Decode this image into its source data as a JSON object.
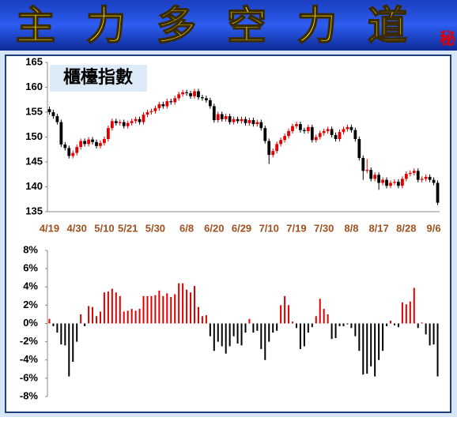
{
  "header": {
    "title": "主力多空力道",
    "badge": "秘"
  },
  "chart_data": [
    {
      "type": "candlestick",
      "title": "櫃檯指數",
      "categories": [
        "4/19",
        null,
        null,
        null,
        null,
        null,
        null,
        "4/30",
        null,
        null,
        null,
        null,
        null,
        null,
        "5/10",
        null,
        null,
        null,
        null,
        null,
        "5/21",
        null,
        null,
        null,
        null,
        null,
        null,
        "5/30",
        null,
        null,
        null,
        null,
        null,
        null,
        null,
        "6/8",
        null,
        null,
        null,
        null,
        null,
        null,
        "6/20",
        null,
        null,
        null,
        null,
        null,
        null,
        "6/29",
        null,
        null,
        null,
        null,
        null,
        null,
        "7/10",
        null,
        null,
        null,
        null,
        null,
        null,
        "7/19",
        null,
        null,
        null,
        null,
        null,
        null,
        "7/30",
        null,
        null,
        null,
        null,
        null,
        null,
        "8/8",
        null,
        null,
        null,
        null,
        null,
        null,
        "8/17",
        null,
        null,
        null,
        null,
        null,
        null,
        "8/28",
        null,
        null,
        null,
        null,
        null,
        null,
        "9/6",
        null
      ],
      "open": [
        155.6,
        155.0,
        154.2,
        153.0,
        148.5,
        147.8,
        146.2,
        146.8,
        148.0,
        149.2,
        148.6,
        149.5,
        149.0,
        148.2,
        148.8,
        149.6,
        151.8,
        153.2,
        152.8,
        153.0,
        152.2,
        152.8,
        153.2,
        153.6,
        153.0,
        154.5,
        155.0,
        155.2,
        155.8,
        156.6,
        156.2,
        157.2,
        157.0,
        157.8,
        158.6,
        159.0,
        158.8,
        158.2,
        159.2,
        158.0,
        157.8,
        157.4,
        156.2,
        153.4,
        154.6,
        153.6,
        154.2,
        153.0,
        153.6,
        153.2,
        153.6,
        152.8,
        153.4,
        152.6,
        153.0,
        151.8,
        149.2,
        146.4,
        147.2,
        148.6,
        149.4,
        150.2,
        151.2,
        152.2,
        152.6,
        151.4,
        151.2,
        152.0,
        149.4,
        150.0,
        150.8,
        151.2,
        151.6,
        150.4,
        149.6,
        151.0,
        151.6,
        152.0,
        151.4,
        149.6,
        145.8,
        143.2,
        143.4,
        141.6,
        142.4,
        140.8,
        141.4,
        140.2,
        140.8,
        141.0,
        140.2,
        141.6,
        142.6,
        142.8,
        143.2,
        141.4,
        141.6,
        142.0,
        141.4,
        140.8
      ],
      "close": [
        155.0,
        154.2,
        153.0,
        148.5,
        147.8,
        146.2,
        146.8,
        148.0,
        149.2,
        148.6,
        149.5,
        149.0,
        148.2,
        148.8,
        149.6,
        151.8,
        153.2,
        152.8,
        153.0,
        152.2,
        152.8,
        153.2,
        153.6,
        153.0,
        154.5,
        155.0,
        155.2,
        155.8,
        156.6,
        156.2,
        157.2,
        157.0,
        157.8,
        158.6,
        159.0,
        158.8,
        158.2,
        159.2,
        158.0,
        157.8,
        157.4,
        156.2,
        153.4,
        154.6,
        153.6,
        154.2,
        153.0,
        153.6,
        153.2,
        153.6,
        152.8,
        153.4,
        152.6,
        153.0,
        151.8,
        149.2,
        146.4,
        147.2,
        148.6,
        149.4,
        150.2,
        151.2,
        152.2,
        152.6,
        151.4,
        151.2,
        152.0,
        149.4,
        150.0,
        150.8,
        151.2,
        151.6,
        150.4,
        149.6,
        151.0,
        151.6,
        152.0,
        151.4,
        149.6,
        145.8,
        143.2,
        143.4,
        141.6,
        142.4,
        140.8,
        141.4,
        140.2,
        140.8,
        141.0,
        140.2,
        141.6,
        142.6,
        142.8,
        143.2,
        141.4,
        141.6,
        142.0,
        141.4,
        140.8,
        136.8
      ],
      "high": [
        156.1,
        155.5,
        154.7,
        153.5,
        149.0,
        148.3,
        147.3,
        148.5,
        149.7,
        149.7,
        150.0,
        150.0,
        149.5,
        149.3,
        150.1,
        152.3,
        153.7,
        153.7,
        153.5,
        153.5,
        153.3,
        153.7,
        154.1,
        154.1,
        155.0,
        155.5,
        155.7,
        156.3,
        157.1,
        157.1,
        157.7,
        157.7,
        158.3,
        159.1,
        159.5,
        159.5,
        159.3,
        159.7,
        159.7,
        158.5,
        158.3,
        157.9,
        156.7,
        155.1,
        155.1,
        154.7,
        154.7,
        154.1,
        154.1,
        154.1,
        154.1,
        153.9,
        153.9,
        153.5,
        153.5,
        152.3,
        149.7,
        147.7,
        149.1,
        149.9,
        150.7,
        151.7,
        152.7,
        153.1,
        153.1,
        151.9,
        152.5,
        152.5,
        150.5,
        151.3,
        151.7,
        152.1,
        152.1,
        150.9,
        151.5,
        152.1,
        152.5,
        152.5,
        151.9,
        150.1,
        146.3,
        145.6,
        143.9,
        142.9,
        142.9,
        141.9,
        141.9,
        141.3,
        141.5,
        141.5,
        142.1,
        143.1,
        143.3,
        143.7,
        143.7,
        142.1,
        142.5,
        142.5,
        141.9,
        141.3
      ],
      "low": [
        154.5,
        153.7,
        152.5,
        148.0,
        147.3,
        145.7,
        145.7,
        146.3,
        147.5,
        148.1,
        148.1,
        148.5,
        147.7,
        147.7,
        148.3,
        149.1,
        151.3,
        152.3,
        152.3,
        151.7,
        151.7,
        152.3,
        152.7,
        152.5,
        152.5,
        154.0,
        154.5,
        154.7,
        155.3,
        155.7,
        155.7,
        156.5,
        156.5,
        157.3,
        158.1,
        158.3,
        157.7,
        157.7,
        157.5,
        157.3,
        156.9,
        155.7,
        152.9,
        152.9,
        153.1,
        153.1,
        152.5,
        152.5,
        152.7,
        152.7,
        152.3,
        152.3,
        152.1,
        152.1,
        151.3,
        148.7,
        144.6,
        145.9,
        146.7,
        148.1,
        148.9,
        149.7,
        150.7,
        151.7,
        150.9,
        150.7,
        150.7,
        148.9,
        148.9,
        149.5,
        150.3,
        150.7,
        149.9,
        149.1,
        149.1,
        150.5,
        151.1,
        150.9,
        149.1,
        145.3,
        141.4,
        142.7,
        141.1,
        141.1,
        139.4,
        140.3,
        139.7,
        139.7,
        140.3,
        139.7,
        139.7,
        141.1,
        142.1,
        142.3,
        140.9,
        140.9,
        141.1,
        140.9,
        140.3,
        136.3
      ],
      "up_color": "#e00000",
      "down_color": "#000000",
      "ylim": [
        135,
        165
      ],
      "yticks": [
        135,
        140,
        145,
        150,
        155,
        160,
        165
      ]
    },
    {
      "type": "bar",
      "values": [
        0.5,
        -0.3,
        -1,
        -2.3,
        -2.4,
        -5.8,
        -4.2,
        -2,
        1,
        -0.3,
        1.9,
        1.8,
        0.8,
        1.3,
        3.4,
        3.5,
        3.8,
        3.4,
        3,
        1.3,
        1.4,
        1.6,
        1.4,
        1.6,
        3,
        3,
        3,
        3.1,
        3.6,
        3,
        3.3,
        2.9,
        3.2,
        4.4,
        4.4,
        3.7,
        3.4,
        4.1,
        1.8,
        0.8,
        0.9,
        -1.4,
        -3,
        -2,
        -2.5,
        -3.3,
        -2.5,
        -1.4,
        -2.2,
        -2.4,
        -1,
        0.5,
        -1,
        -0.8,
        -2.8,
        -4,
        -2,
        -1,
        -0.8,
        2,
        3,
        2,
        0.2,
        -0.5,
        -2.8,
        -2.5,
        -1,
        -0.4,
        0.8,
        2.7,
        1.6,
        1,
        -1.7,
        -1.6,
        -0.3,
        -0.3,
        -0.1,
        -0.5,
        -1.4,
        -3,
        -5.6,
        -5.5,
        -4.7,
        -5.8,
        -4,
        -3,
        -0.3,
        0.3,
        -0.2,
        -0.4,
        2.3,
        2.1,
        2.4,
        3.9,
        -0.5,
        0.1,
        -1.2,
        -2.4,
        -2.3,
        -5.8
      ],
      "positive_color": "#e00000",
      "negative_color": "#000000",
      "ylim": [
        -8,
        8
      ],
      "yticks": [
        {
          "value": -8,
          "label": "-8%"
        },
        {
          "value": -6,
          "label": "-6%"
        },
        {
          "value": -4,
          "label": "-4%"
        },
        {
          "value": -2,
          "label": "-2%"
        },
        {
          "value": 0,
          "label": "0%"
        },
        {
          "value": 2,
          "label": "2%"
        },
        {
          "value": 4,
          "label": "4%"
        },
        {
          "value": 6,
          "label": "6%"
        },
        {
          "value": 8,
          "label": "8%"
        }
      ]
    }
  ]
}
